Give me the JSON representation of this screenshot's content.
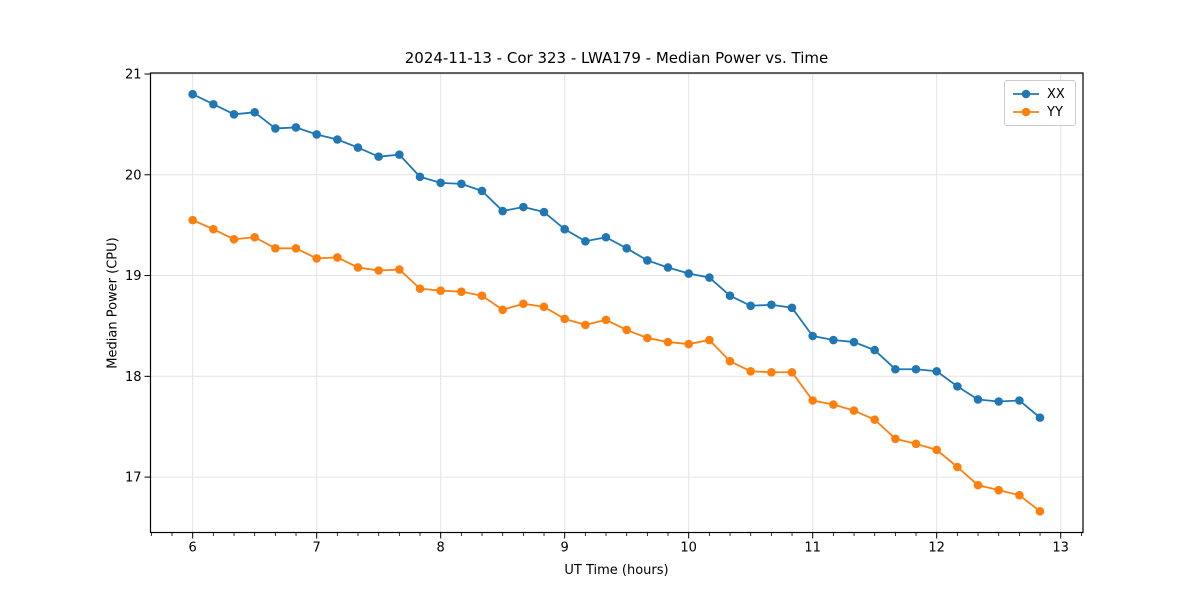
{
  "chart_data": {
    "type": "line",
    "title": "2024-11-13 - Cor 323 - LWA179 - Median Power vs. Time",
    "xlabel": "UT Time (hours)",
    "ylabel": "Median Power (CPU)",
    "xlim": [
      5.66,
      13.18
    ],
    "ylim": [
      16.45,
      21.01
    ],
    "x_ticks": [
      6,
      7,
      8,
      9,
      10,
      11,
      12,
      13
    ],
    "y_ticks": [
      17,
      18,
      19,
      20,
      21
    ],
    "x_minor_step": 0.16667,
    "grid": true,
    "grid_color": "#e4e4e4",
    "spine_color": "#000000",
    "legend_position": "upper-right",
    "x": [
      6.0,
      6.167,
      6.333,
      6.5,
      6.667,
      6.833,
      7.0,
      7.167,
      7.333,
      7.5,
      7.667,
      7.833,
      8.0,
      8.167,
      8.333,
      8.5,
      8.667,
      8.833,
      9.0,
      9.167,
      9.333,
      9.5,
      9.667,
      9.833,
      10.0,
      10.167,
      10.333,
      10.5,
      10.667,
      10.833,
      11.0,
      11.167,
      11.333,
      11.5,
      11.667,
      11.833,
      12.0,
      12.167,
      12.333,
      12.5,
      12.667,
      12.833
    ],
    "series": [
      {
        "name": "XX",
        "color": "#1f77b4",
        "values": [
          20.8,
          20.7,
          20.6,
          20.62,
          20.46,
          20.47,
          20.4,
          20.35,
          20.27,
          20.18,
          20.2,
          19.98,
          19.92,
          19.91,
          19.84,
          19.64,
          19.68,
          19.63,
          19.46,
          19.34,
          19.38,
          19.27,
          19.15,
          19.08,
          19.02,
          18.98,
          18.8,
          18.7,
          18.71,
          18.68,
          18.4,
          18.36,
          18.34,
          18.26,
          18.07,
          18.07,
          18.05,
          17.9,
          17.77,
          17.75,
          17.76,
          17.59
        ]
      },
      {
        "name": "YY",
        "color": "#ff7f0e",
        "values": [
          19.55,
          19.46,
          19.36,
          19.38,
          19.27,
          19.27,
          19.17,
          19.18,
          19.08,
          19.05,
          19.06,
          18.87,
          18.85,
          18.84,
          18.8,
          18.66,
          18.72,
          18.69,
          18.57,
          18.51,
          18.56,
          18.46,
          18.38,
          18.34,
          18.32,
          18.36,
          18.15,
          18.05,
          18.04,
          18.04,
          17.76,
          17.72,
          17.66,
          17.57,
          17.38,
          17.33,
          17.27,
          17.1,
          16.92,
          16.87,
          16.82,
          16.66
        ]
      }
    ]
  }
}
